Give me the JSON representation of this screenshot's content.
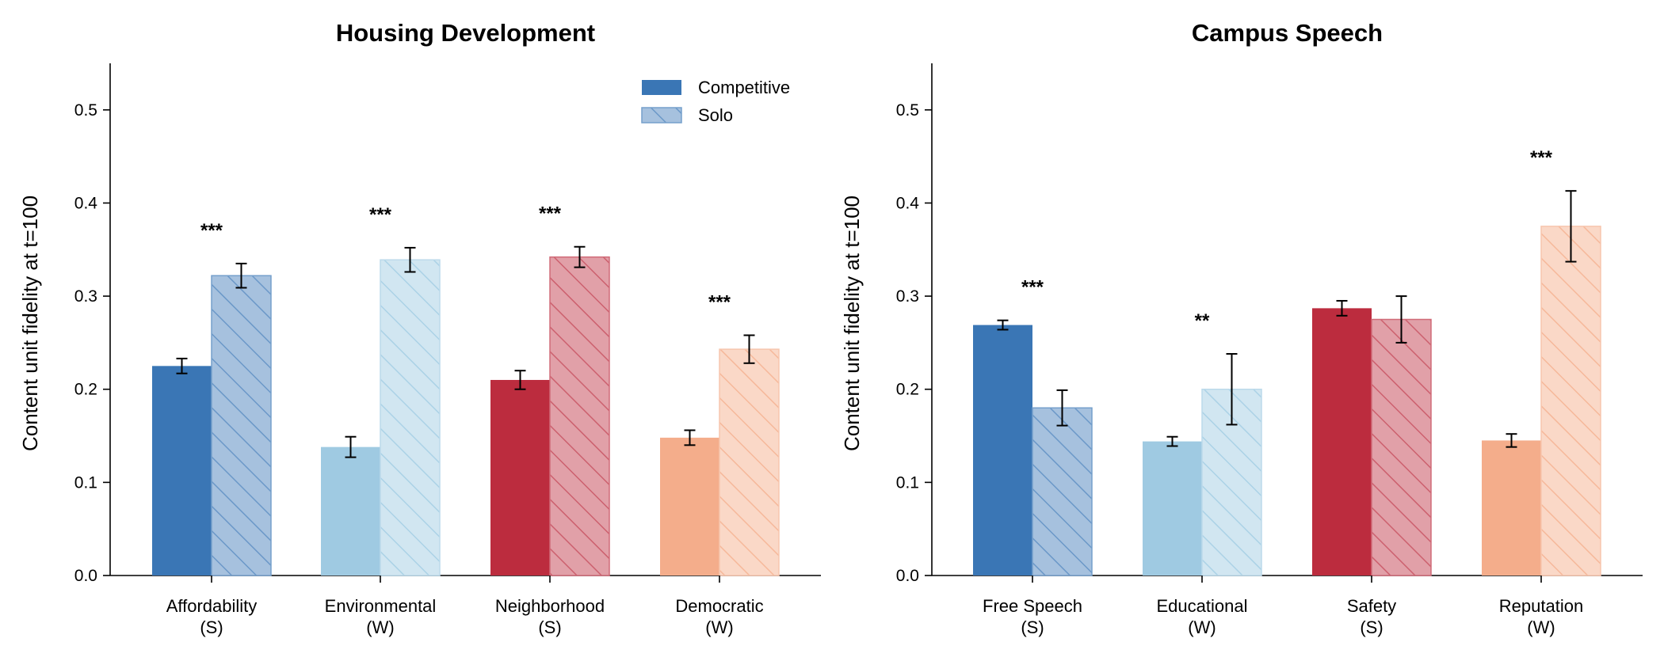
{
  "chart_data": [
    {
      "type": "bar",
      "title": "Housing Development",
      "xlabel": "",
      "ylabel": "Content unit fidelity at t=100",
      "ylim": [
        0,
        0.55
      ],
      "yticks": [
        "0.0",
        "0.1",
        "0.2",
        "0.3",
        "0.4",
        "0.5"
      ],
      "ytick_values": [
        0,
        0.1,
        0.2,
        0.3,
        0.4,
        0.5
      ],
      "legend": {
        "position": "top-right",
        "entries": [
          "Competitive",
          "Solo"
        ]
      },
      "categories": [
        {
          "name": "Affordability",
          "tag": "(S)",
          "color": "#3a76b5",
          "competitive": 0.225,
          "competitive_err": 0.008,
          "solo": 0.322,
          "solo_err": 0.013,
          "significance": "***"
        },
        {
          "name": "Environmental",
          "tag": "(W)",
          "color": "#9fcae2",
          "competitive": 0.138,
          "competitive_err": 0.011,
          "solo": 0.339,
          "solo_err": 0.013,
          "significance": "***"
        },
        {
          "name": "Neighborhood",
          "tag": "(S)",
          "color": "#bc2c3e",
          "competitive": 0.21,
          "competitive_err": 0.01,
          "solo": 0.342,
          "solo_err": 0.011,
          "significance": "***"
        },
        {
          "name": "Democratic",
          "tag": "(W)",
          "color": "#f4ad8b",
          "competitive": 0.148,
          "competitive_err": 0.008,
          "solo": 0.243,
          "solo_err": 0.015,
          "significance": "***"
        }
      ]
    },
    {
      "type": "bar",
      "title": "Campus Speech",
      "xlabel": "",
      "ylabel": "Content unit fidelity at t=100",
      "ylim": [
        0,
        0.55
      ],
      "yticks": [
        "0.0",
        "0.1",
        "0.2",
        "0.3",
        "0.4",
        "0.5"
      ],
      "ytick_values": [
        0,
        0.1,
        0.2,
        0.3,
        0.4,
        0.5
      ],
      "legend": null,
      "categories": [
        {
          "name": "Free Speech",
          "tag": "(S)",
          "color": "#3a76b5",
          "competitive": 0.269,
          "competitive_err": 0.005,
          "solo": 0.18,
          "solo_err": 0.019,
          "significance": "***"
        },
        {
          "name": "Educational",
          "tag": "(W)",
          "color": "#9fcae2",
          "competitive": 0.144,
          "competitive_err": 0.005,
          "solo": 0.2,
          "solo_err": 0.038,
          "significance": "**"
        },
        {
          "name": "Safety",
          "tag": "(S)",
          "color": "#bc2c3e",
          "competitive": 0.287,
          "competitive_err": 0.008,
          "solo": 0.275,
          "solo_err": 0.025,
          "significance": ""
        },
        {
          "name": "Reputation",
          "tag": "(W)",
          "color": "#f4ad8b",
          "competitive": 0.145,
          "competitive_err": 0.007,
          "solo": 0.375,
          "solo_err": 0.038,
          "significance": "***"
        }
      ]
    }
  ]
}
